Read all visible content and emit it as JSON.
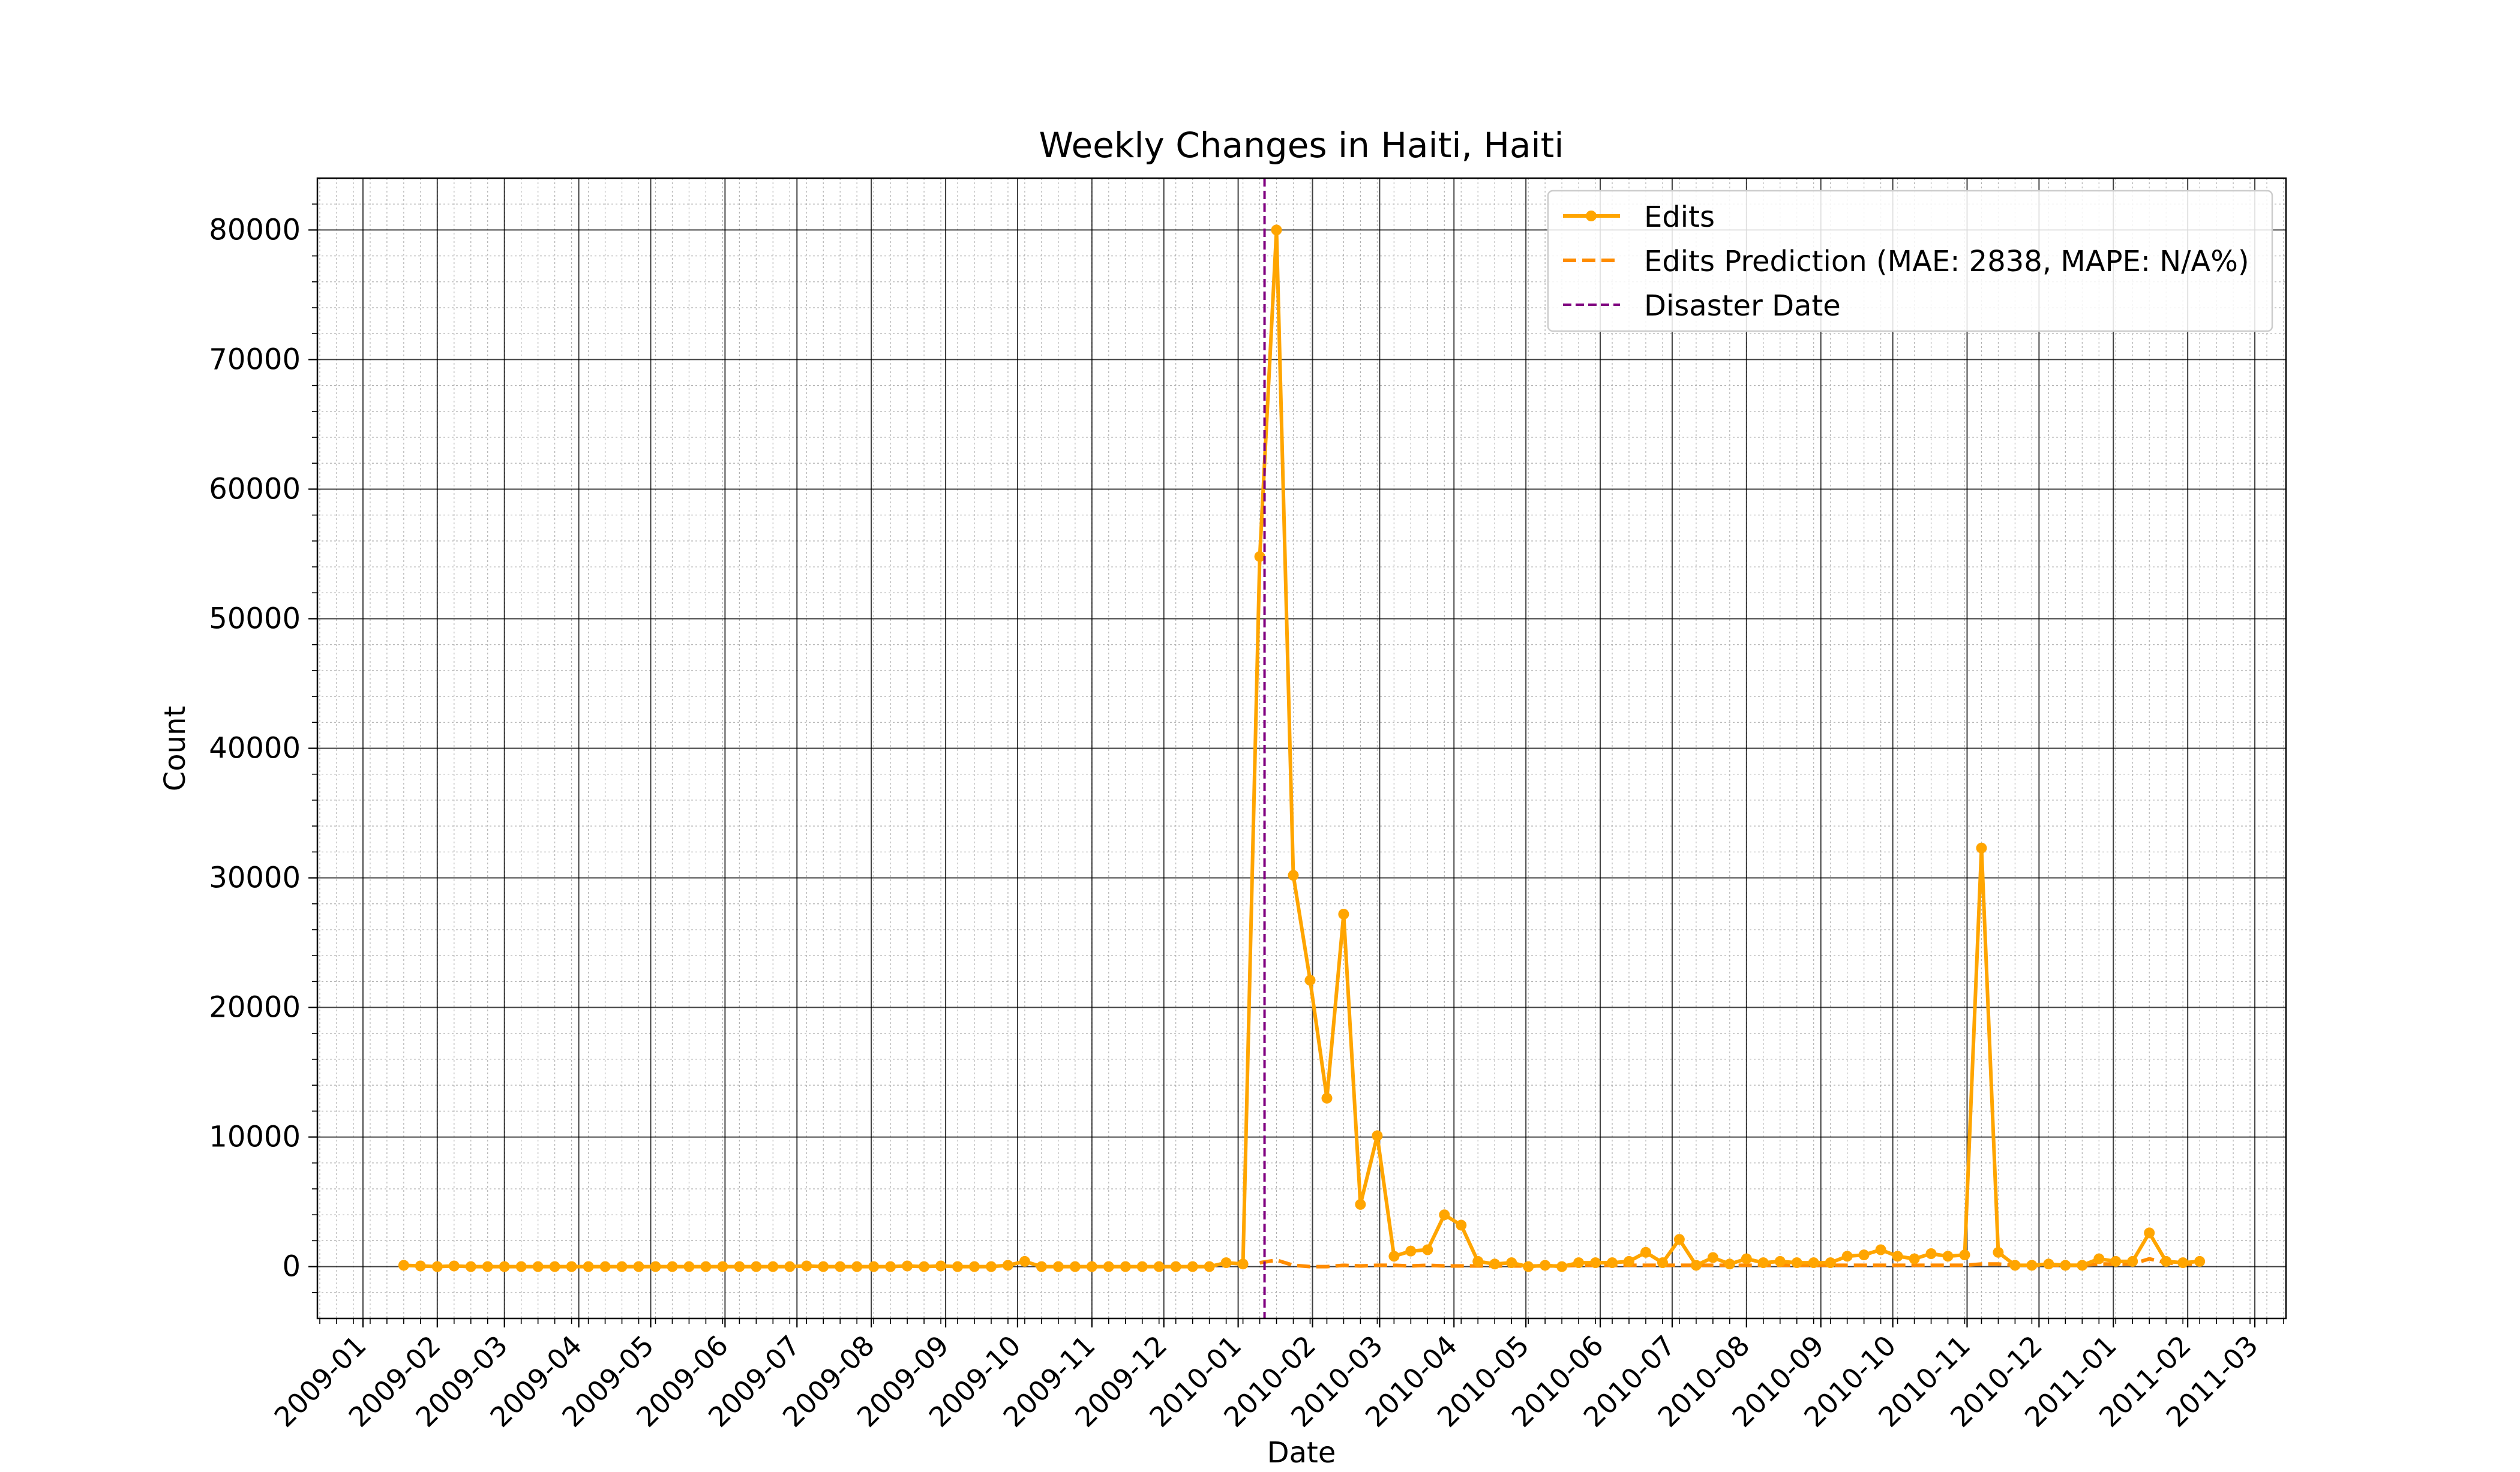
{
  "chart_data": {
    "type": "line",
    "title": "Weekly Changes in Haiti, Haiti",
    "xlabel": "Date",
    "ylabel": "Count",
    "xlim": [
      "2008-12-13",
      "2011-03-14"
    ],
    "ylim": [
      -4000,
      84000
    ],
    "x_ticks": [
      "2009-01",
      "2009-02",
      "2009-03",
      "2009-04",
      "2009-05",
      "2009-06",
      "2009-07",
      "2009-08",
      "2009-09",
      "2009-10",
      "2009-11",
      "2009-12",
      "2010-01",
      "2010-02",
      "2010-03",
      "2010-04",
      "2010-05",
      "2010-06",
      "2010-07",
      "2010-08",
      "2010-09",
      "2010-10",
      "2010-11",
      "2010-12",
      "2011-01",
      "2011-02",
      "2011-03"
    ],
    "y_ticks": [
      0,
      10000,
      20000,
      30000,
      40000,
      50000,
      60000,
      70000,
      80000
    ],
    "grid": true,
    "minor_grid": true,
    "legend": {
      "position": "top-right",
      "entries": [
        "Edits",
        "Edits Prediction (MAE: 2838, MAPE: N/A%)",
        "Disaster Date"
      ]
    },
    "colors": {
      "edits": "#FFA500",
      "prediction": "#FF8C00",
      "disaster": "#800080"
    },
    "disaster_date": "2010-01-12",
    "series": [
      {
        "name": "Edits",
        "style": "solid-marker",
        "points": [
          [
            "2009-01-18",
            100
          ],
          [
            "2009-01-25",
            50
          ],
          [
            "2009-02-01",
            0
          ],
          [
            "2009-02-08",
            50
          ],
          [
            "2009-02-15",
            0
          ],
          [
            "2009-02-22",
            0
          ],
          [
            "2009-03-01",
            0
          ],
          [
            "2009-03-08",
            0
          ],
          [
            "2009-03-15",
            0
          ],
          [
            "2009-03-22",
            0
          ],
          [
            "2009-03-29",
            0
          ],
          [
            "2009-04-05",
            0
          ],
          [
            "2009-04-12",
            0
          ],
          [
            "2009-04-19",
            0
          ],
          [
            "2009-04-26",
            0
          ],
          [
            "2009-05-03",
            0
          ],
          [
            "2009-05-10",
            0
          ],
          [
            "2009-05-17",
            0
          ],
          [
            "2009-05-24",
            0
          ],
          [
            "2009-05-31",
            0
          ],
          [
            "2009-06-07",
            0
          ],
          [
            "2009-06-14",
            0
          ],
          [
            "2009-06-21",
            0
          ],
          [
            "2009-06-28",
            0
          ],
          [
            "2009-07-05",
            50
          ],
          [
            "2009-07-12",
            0
          ],
          [
            "2009-07-19",
            0
          ],
          [
            "2009-07-26",
            0
          ],
          [
            "2009-08-02",
            0
          ],
          [
            "2009-08-09",
            0
          ],
          [
            "2009-08-16",
            50
          ],
          [
            "2009-08-23",
            0
          ],
          [
            "2009-08-30",
            50
          ],
          [
            "2009-09-06",
            0
          ],
          [
            "2009-09-13",
            0
          ],
          [
            "2009-09-20",
            0
          ],
          [
            "2009-09-27",
            100
          ],
          [
            "2009-10-04",
            400
          ],
          [
            "2009-10-11",
            0
          ],
          [
            "2009-10-18",
            0
          ],
          [
            "2009-10-25",
            0
          ],
          [
            "2009-11-01",
            0
          ],
          [
            "2009-11-08",
            0
          ],
          [
            "2009-11-15",
            0
          ],
          [
            "2009-11-22",
            0
          ],
          [
            "2009-11-29",
            0
          ],
          [
            "2009-12-06",
            0
          ],
          [
            "2009-12-13",
            0
          ],
          [
            "2009-12-20",
            0
          ],
          [
            "2009-12-27",
            300
          ],
          [
            "2010-01-03",
            200
          ],
          [
            "2010-01-10",
            54800
          ],
          [
            "2010-01-17",
            80000
          ],
          [
            "2010-01-24",
            30200
          ],
          [
            "2010-01-31",
            22100
          ],
          [
            "2010-02-07",
            13000
          ],
          [
            "2010-02-14",
            27200
          ],
          [
            "2010-02-21",
            4800
          ],
          [
            "2010-02-28",
            10100
          ],
          [
            "2010-03-07",
            800
          ],
          [
            "2010-03-14",
            1200
          ],
          [
            "2010-03-21",
            1300
          ],
          [
            "2010-03-28",
            4000
          ],
          [
            "2010-04-04",
            3200
          ],
          [
            "2010-04-11",
            400
          ],
          [
            "2010-04-18",
            200
          ],
          [
            "2010-04-25",
            300
          ],
          [
            "2010-05-02",
            0
          ],
          [
            "2010-05-09",
            100
          ],
          [
            "2010-05-16",
            0
          ],
          [
            "2010-05-23",
            300
          ],
          [
            "2010-05-30",
            300
          ],
          [
            "2010-06-06",
            300
          ],
          [
            "2010-06-13",
            400
          ],
          [
            "2010-06-20",
            1100
          ],
          [
            "2010-06-27",
            300
          ],
          [
            "2010-07-04",
            2100
          ],
          [
            "2010-07-11",
            100
          ],
          [
            "2010-07-18",
            700
          ],
          [
            "2010-07-25",
            200
          ],
          [
            "2010-08-01",
            600
          ],
          [
            "2010-08-08",
            300
          ],
          [
            "2010-08-15",
            400
          ],
          [
            "2010-08-22",
            300
          ],
          [
            "2010-08-29",
            300
          ],
          [
            "2010-09-05",
            300
          ],
          [
            "2010-09-12",
            800
          ],
          [
            "2010-09-19",
            900
          ],
          [
            "2010-09-26",
            1300
          ],
          [
            "2010-10-03",
            800
          ],
          [
            "2010-10-10",
            600
          ],
          [
            "2010-10-17",
            1000
          ],
          [
            "2010-10-24",
            800
          ],
          [
            "2010-10-31",
            900
          ],
          [
            "2010-11-07",
            32300
          ],
          [
            "2010-11-14",
            1100
          ],
          [
            "2010-11-21",
            100
          ],
          [
            "2010-11-28",
            100
          ],
          [
            "2010-12-05",
            200
          ],
          [
            "2010-12-12",
            100
          ],
          [
            "2010-12-19",
            100
          ],
          [
            "2010-12-26",
            600
          ],
          [
            "2011-01-02",
            400
          ],
          [
            "2011-01-09",
            400
          ],
          [
            "2011-01-16",
            2600
          ],
          [
            "2011-01-23",
            400
          ],
          [
            "2011-01-30",
            300
          ],
          [
            "2011-02-06",
            400
          ]
        ]
      },
      {
        "name": "Edits Prediction (MAE: 2838, MAPE: N/A%)",
        "style": "dashed",
        "points": [
          [
            "2010-01-10",
            300
          ],
          [
            "2010-01-17",
            500
          ],
          [
            "2010-01-24",
            100
          ],
          [
            "2010-01-31",
            0
          ],
          [
            "2010-02-07",
            0
          ],
          [
            "2010-02-14",
            100
          ],
          [
            "2010-02-21",
            50
          ],
          [
            "2010-02-28",
            100
          ],
          [
            "2010-03-07",
            100
          ],
          [
            "2010-03-14",
            50
          ],
          [
            "2010-03-21",
            100
          ],
          [
            "2010-03-28",
            50
          ],
          [
            "2010-04-04",
            50
          ],
          [
            "2010-04-11",
            50
          ],
          [
            "2010-04-18",
            50
          ],
          [
            "2010-04-25",
            50
          ],
          [
            "2010-05-02",
            50
          ],
          [
            "2010-05-09",
            50
          ],
          [
            "2010-05-16",
            50
          ],
          [
            "2010-05-23",
            100
          ],
          [
            "2010-05-30",
            100
          ],
          [
            "2010-06-06",
            100
          ],
          [
            "2010-06-13",
            100
          ],
          [
            "2010-06-20",
            100
          ],
          [
            "2010-06-27",
            100
          ],
          [
            "2010-07-04",
            100
          ],
          [
            "2010-07-11",
            100
          ],
          [
            "2010-07-18",
            100
          ],
          [
            "2010-07-25",
            100
          ],
          [
            "2010-08-01",
            100
          ],
          [
            "2010-08-08",
            100
          ],
          [
            "2010-08-15",
            100
          ],
          [
            "2010-08-22",
            100
          ],
          [
            "2010-08-29",
            100
          ],
          [
            "2010-09-05",
            100
          ],
          [
            "2010-09-12",
            100
          ],
          [
            "2010-09-19",
            100
          ],
          [
            "2010-09-26",
            100
          ],
          [
            "2010-10-03",
            100
          ],
          [
            "2010-10-10",
            100
          ],
          [
            "2010-10-17",
            100
          ],
          [
            "2010-10-24",
            100
          ],
          [
            "2010-10-31",
            100
          ],
          [
            "2010-11-07",
            200
          ],
          [
            "2010-11-14",
            200
          ],
          [
            "2010-11-21",
            100
          ],
          [
            "2010-11-28",
            100
          ],
          [
            "2010-12-05",
            100
          ],
          [
            "2010-12-12",
            100
          ],
          [
            "2010-12-19",
            100
          ],
          [
            "2010-12-26",
            200
          ],
          [
            "2011-01-02",
            200
          ],
          [
            "2011-01-09",
            200
          ],
          [
            "2011-01-16",
            600
          ],
          [
            "2011-01-23",
            300
          ],
          [
            "2011-01-30",
            200
          ],
          [
            "2011-02-06",
            200
          ]
        ]
      }
    ]
  }
}
